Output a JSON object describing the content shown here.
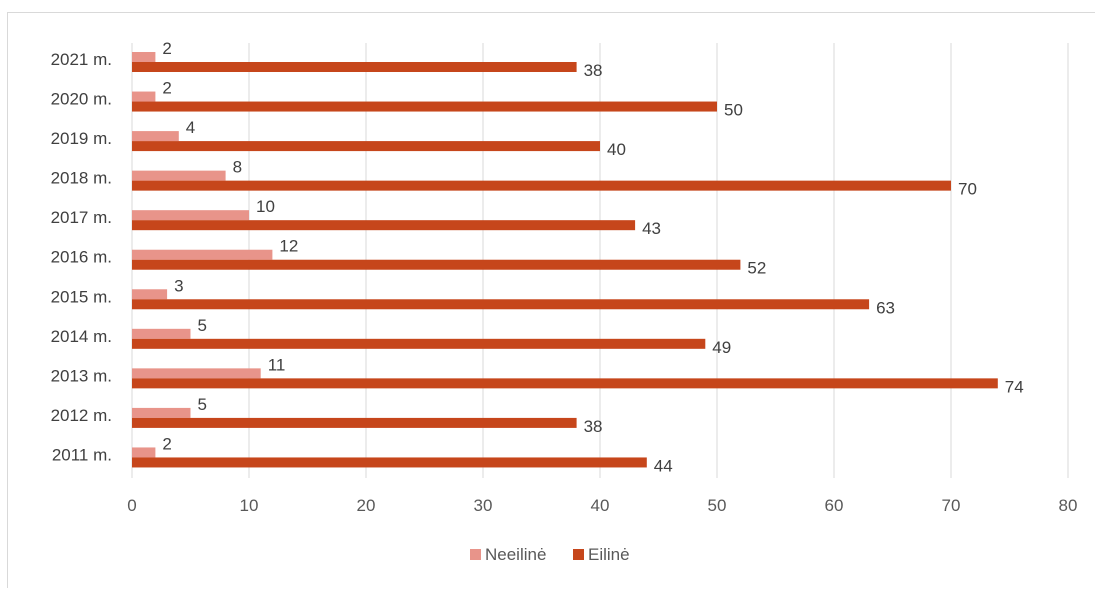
{
  "chart_data": {
    "type": "bar",
    "orientation": "horizontal",
    "categories": [
      "2021 m.",
      "2020 m.",
      "2019 m.",
      "2018 m.",
      "2017 m.",
      "2016 m.",
      "2015 m.",
      "2014 m.",
      "2013 m.",
      "2012 m.",
      "2011 m."
    ],
    "series": [
      {
        "name": "Neeilinė",
        "color": "#e8948a",
        "values": [
          2,
          2,
          4,
          8,
          10,
          12,
          3,
          5,
          11,
          5,
          2
        ]
      },
      {
        "name": "Eilinė",
        "color": "#c6461b",
        "values": [
          38,
          50,
          40,
          70,
          43,
          52,
          63,
          49,
          74,
          38,
          44
        ]
      }
    ],
    "xlim": [
      0,
      80
    ],
    "xticks": [
      0,
      10,
      20,
      30,
      40,
      50,
      60,
      70,
      80
    ],
    "grid": "vertical",
    "legend_position": "bottom",
    "data_labels": true
  }
}
